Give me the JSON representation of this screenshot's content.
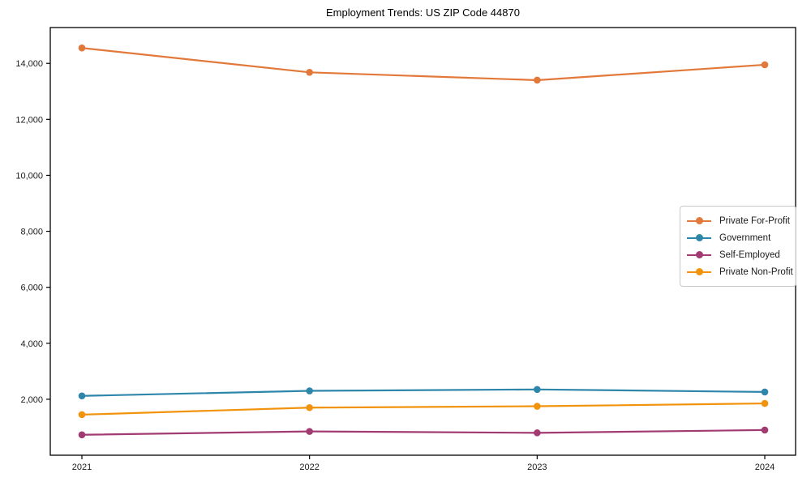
{
  "title": "Employment Trends: US ZIP Code 44870",
  "chart_data": {
    "type": "line",
    "title": "Employment Trends: US ZIP Code 44870",
    "xlabel": "",
    "ylabel": "",
    "categories": [
      "2021",
      "2022",
      "2023",
      "2024"
    ],
    "series": [
      {
        "name": "Private For-Profit",
        "color": "#E2793A",
        "values": [
          14550,
          13680,
          13400,
          13950
        ]
      },
      {
        "name": "Government",
        "color": "#2E86AB",
        "values": [
          2120,
          2300,
          2350,
          2260
        ]
      },
      {
        "name": "Self-Employed",
        "color": "#A23B72",
        "values": [
          730,
          850,
          800,
          900
        ]
      },
      {
        "name": "Private Non-Profit",
        "color": "#F2930D",
        "values": [
          1450,
          1700,
          1750,
          1850
        ]
      }
    ],
    "yticks": [
      2000,
      4000,
      6000,
      8000,
      10000,
      12000,
      14000
    ],
    "ytick_labels": [
      "2,000",
      "4,000",
      "6,000",
      "8,000",
      "10,000",
      "12,000",
      "14,000"
    ],
    "ylim": [
      0,
      15280
    ],
    "grid": false,
    "legend_position": "center right",
    "frame_color": "#000000",
    "tick_label_color": "#1a1a1a"
  }
}
